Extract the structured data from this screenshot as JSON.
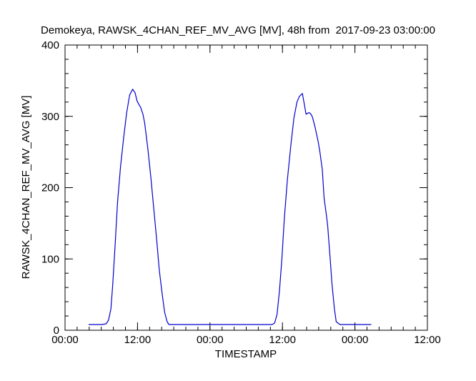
{
  "chart_data": {
    "type": "line",
    "title": "Demokeya, RAWSK_4CHAN_REF_MV_AVG [MV], 48h from  2017-09-23 03:00:00",
    "xlabel": "TIMESTAMP",
    "ylabel": "RAWSK_4CHAN_REF_MV_AVG [MV]",
    "x_unit": "hours since 2017-09-23 00:00",
    "xlim": [
      0,
      60
    ],
    "ylim": [
      0,
      400
    ],
    "x_ticks": [
      0,
      12,
      24,
      36,
      48,
      60
    ],
    "x_tick_labels": [
      "00:00",
      "12:00",
      "00:00",
      "12:00",
      "00:00",
      "12:00"
    ],
    "y_ticks": [
      0,
      100,
      200,
      300,
      400
    ],
    "y_tick_labels": [
      "0",
      "100",
      "200",
      "300",
      "400"
    ],
    "grid": false,
    "line_color": "#0000cc",
    "series": [
      {
        "x": [
          3.9,
          6.1,
          6.8,
          7.2,
          7.6,
          7.9,
          8.3,
          8.7,
          9.2,
          9.7,
          10.2,
          10.7,
          11.2,
          11.6,
          11.9,
          12.2,
          12.5,
          12.9,
          13.2,
          13.7,
          14.2,
          14.7,
          15.2,
          15.6,
          16.1,
          16.5,
          16.9,
          17.2,
          17.6,
          18.1,
          19.5,
          24.0,
          30.0,
          34.3,
          34.7,
          35.1,
          35.5,
          35.9,
          36.3,
          36.8,
          37.4,
          37.9,
          38.4,
          38.8,
          39.3,
          39.6,
          39.9,
          40.3,
          40.5,
          40.8,
          41.0,
          41.4,
          41.9,
          42.2,
          42.6,
          42.9,
          43.3,
          43.5,
          43.9,
          44.2,
          44.6,
          44.9,
          45.5,
          46.5,
          48.0,
          50.7
        ],
        "y": [
          8,
          8,
          9,
          14,
          30,
          65,
          120,
          180,
          230,
          270,
          305,
          330,
          338,
          333,
          322,
          317,
          313,
          303,
          290,
          255,
          215,
          170,
          125,
          85,
          50,
          25,
          12,
          8,
          8,
          8,
          8,
          8,
          8,
          8,
          10,
          22,
          55,
          100,
          155,
          210,
          260,
          298,
          320,
          328,
          332,
          318,
          303,
          305,
          305,
          302,
          298,
          285,
          265,
          250,
          225,
          185,
          160,
          145,
          100,
          65,
          30,
          12,
          8,
          8,
          8,
          8
        ]
      }
    ]
  }
}
